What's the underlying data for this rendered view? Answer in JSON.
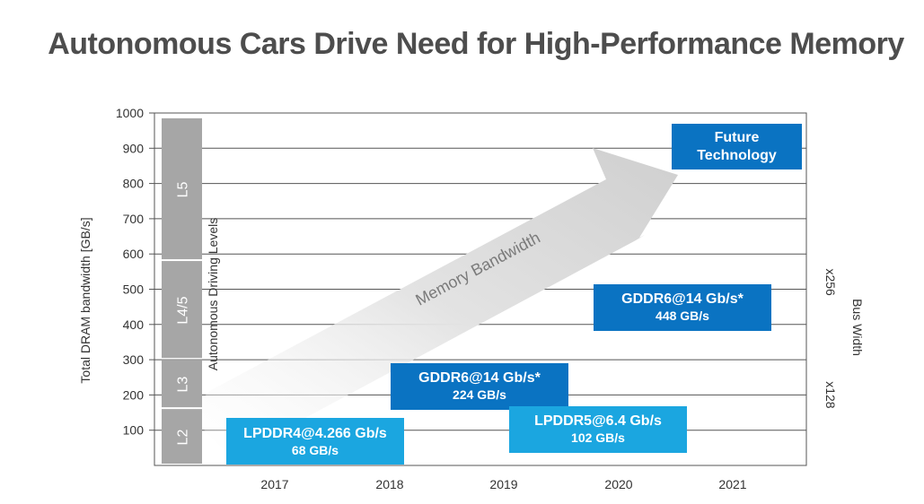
{
  "title": "Autonomous Cars Drive Need for High-Performance Memory",
  "chart_data": {
    "type": "bar",
    "ylabel": "Total DRAM bandwidth [GB/s]",
    "ylim": [
      0,
      1000
    ],
    "yticks": [
      100,
      200,
      300,
      400,
      500,
      600,
      700,
      800,
      900,
      1000
    ],
    "categories": [
      "2017",
      "2018",
      "2019",
      "2020",
      "2021"
    ],
    "series": [
      {
        "label": "LPDDR4@4.266 Gb/s",
        "value_label": "68 GB/s",
        "x": "2017",
        "value": 68,
        "color": "#1ba6e0"
      },
      {
        "label": "GDDR6@14 Gb/s*",
        "value_label": "224 GB/s",
        "x": "2018-2019",
        "value": 224,
        "color": "#0a73c2"
      },
      {
        "label": "LPDDR5@6.4 Gb/s",
        "value_label": "102 GB/s",
        "x": "2019-2020",
        "value": 102,
        "color": "#1ba6e0"
      },
      {
        "label": "GDDR6@14 Gb/s*",
        "value_label": "448 GB/s",
        "x": "2020",
        "value": 448,
        "color": "#0a73c2"
      }
    ],
    "future": {
      "line1": "Future",
      "line2": "Technology",
      "color": "#0a73c2"
    },
    "driving_levels": {
      "label": "Autonomous Driving Levels",
      "levels": [
        {
          "name": "L2",
          "from": 0,
          "to": 160
        },
        {
          "name": "L3",
          "from": 160,
          "to": 300
        },
        {
          "name": "L4/5",
          "from": 300,
          "to": 580
        },
        {
          "name": "L5",
          "from": 580,
          "to": 985
        }
      ],
      "color": "#a6a6a6"
    },
    "arrow_label": "Memory Bandwidth",
    "bus_width": {
      "label": "Bus Width",
      "ticks": [
        {
          "name": "x256",
          "value": 520
        },
        {
          "name": "x128",
          "value": 200
        }
      ]
    },
    "grid": true
  }
}
